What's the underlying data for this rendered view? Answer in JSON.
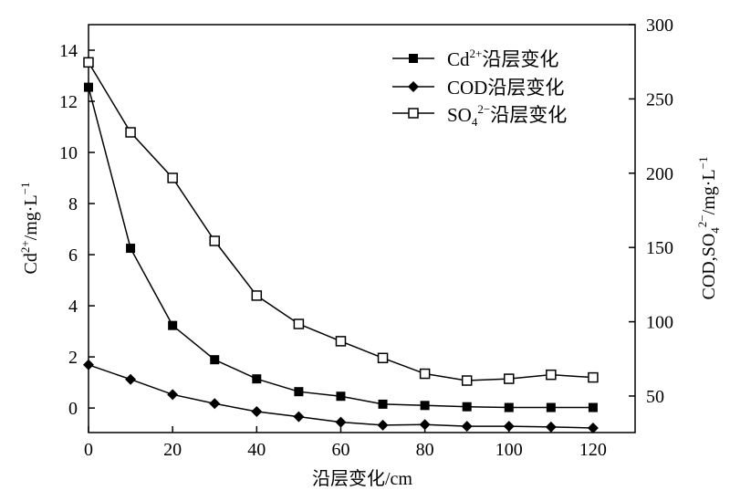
{
  "chart_data": {
    "type": "line",
    "title": "",
    "x": [
      0,
      10,
      20,
      30,
      40,
      50,
      60,
      70,
      80,
      90,
      100,
      110,
      120
    ],
    "xlim": [
      0,
      130
    ],
    "xticks": [
      0,
      20,
      40,
      60,
      80,
      100,
      120
    ],
    "xlabel": "沿层变化/cm",
    "ylabel_left": {
      "base": "Cd",
      "sup": "2+",
      "unit": "/mg·L",
      "unit_sup": "−1"
    },
    "ylabel_right": {
      "base": "COD,SO",
      "sub": "4",
      "sup": "2−",
      "unit": "/mg·L",
      "unit_sup": "−1"
    },
    "ylim_left": [
      -0.96,
      15
    ],
    "yticks_left": [
      0,
      2,
      4,
      6,
      8,
      10,
      12,
      14
    ],
    "ylim_right": [
      25.4,
      300
    ],
    "yticks_right": [
      50,
      100,
      150,
      200,
      250,
      300
    ],
    "grid": false,
    "legend_placement": "top-right",
    "series": [
      {
        "name": "Cd2+沿层变化",
        "label_main": "Cd",
        "label_sup": "2+",
        "label_rest": "沿层变化",
        "axis": "left",
        "marker": "filled-square",
        "values": [
          12.55,
          6.25,
          3.23,
          1.89,
          1.14,
          0.64,
          0.46,
          0.15,
          0.1,
          0.05,
          0.02,
          0.02,
          0.02
        ]
      },
      {
        "name": "COD沿层变化",
        "label_main": "COD沿层变化",
        "axis": "right",
        "marker": "filled-diamond",
        "values": [
          71,
          61.2,
          51,
          44.9,
          39.5,
          36.1,
          32.4,
          30.4,
          30.8,
          29.6,
          29.6,
          29.2,
          28.5
        ]
      },
      {
        "name": "SO42−沿层变化",
        "label_main": "SO",
        "label_sub": "4",
        "label_sup": "2−",
        "label_rest": "沿层变化",
        "axis": "right",
        "marker": "open-square",
        "values": [
          274.6,
          227.5,
          196.8,
          154.4,
          117.6,
          98.5,
          86.9,
          75.6,
          65,
          60.4,
          61.6,
          64.3,
          62.5
        ]
      }
    ]
  }
}
